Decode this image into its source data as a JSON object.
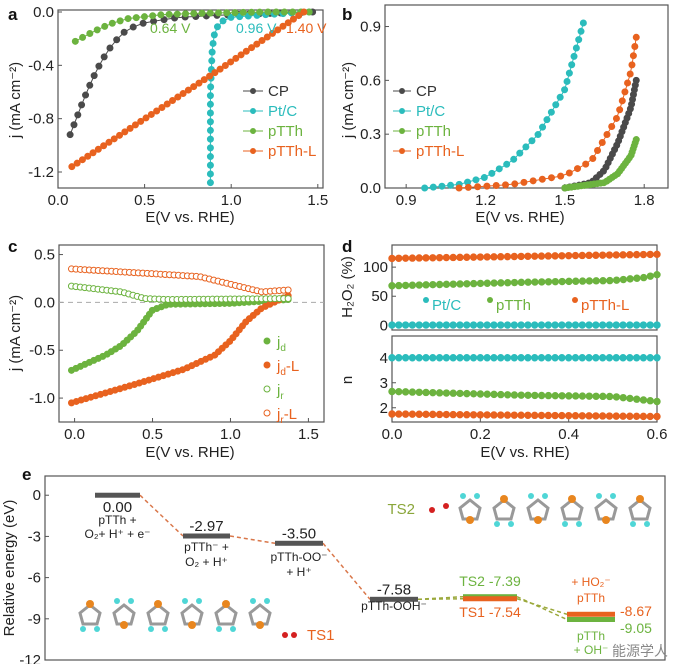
{
  "colors": {
    "CP": "#4a4a4a",
    "Pt/C": "#2bbcbc",
    "pTTh": "#6cb33f",
    "pTTh-L": "#e8621f",
    "gray": "#555555"
  },
  "watermark": "能源学人",
  "chart_data": [
    {
      "panel": "a",
      "type": "line",
      "xlabel": "E(V vs. RHE)",
      "ylabel": "j (mA cm⁻²)",
      "xlim": [
        0,
        1.53
      ],
      "ylim": [
        -1.32,
        0.015
      ],
      "xticks": [
        "0.0",
        "0.5",
        "1.0",
        "1.5"
      ],
      "yticks": [
        "0.0",
        "-0.4",
        "-0.8",
        "-1.2"
      ],
      "legend": "right",
      "annotations": [
        {
          "text": "0.64 V",
          "series": "pTTh"
        },
        {
          "text": "0.96 V",
          "series": "Pt/C"
        },
        {
          "text": "1.40 V",
          "series": "pTTh-L"
        }
      ],
      "series": [
        {
          "name": "CP",
          "x": [
            0.07,
            0.1,
            0.15,
            0.2,
            0.25,
            0.3,
            0.35,
            0.4,
            0.5,
            0.7,
            1.0,
            1.47
          ],
          "y": [
            -0.92,
            -0.82,
            -0.65,
            -0.5,
            -0.37,
            -0.27,
            -0.19,
            -0.13,
            -0.08,
            -0.04,
            -0.02,
            0
          ]
        },
        {
          "name": "Pt/C",
          "x": [
            0.88,
            0.88,
            0.89,
            0.9,
            0.93,
            1.0,
            1.2,
            1.45
          ],
          "y": [
            -1.28,
            -0.6,
            -0.3,
            -0.18,
            -0.08,
            -0.04,
            -0.02,
            0
          ]
        },
        {
          "name": "pTTh",
          "x": [
            0.1,
            0.2,
            0.3,
            0.4,
            0.6,
            0.8,
            1.2,
            1.45
          ],
          "y": [
            -0.22,
            -0.15,
            -0.09,
            -0.05,
            -0.02,
            -0.01,
            0,
            0
          ]
        },
        {
          "name": "pTTh-L",
          "x": [
            0.08,
            0.9,
            1.42
          ],
          "y": [
            -1.16,
            -0.46,
            0
          ]
        }
      ]
    },
    {
      "panel": "b",
      "type": "line",
      "xlabel": "E(V vs. RHE)",
      "ylabel": "j (mA cm⁻²)",
      "xlim": [
        0.82,
        1.89
      ],
      "ylim": [
        0,
        1.02
      ],
      "xticks": [
        "0.9",
        "1.2",
        "1.5",
        "1.8"
      ],
      "yticks": [
        "0.0",
        "0.3",
        "0.6",
        "0.9"
      ],
      "legend": "left",
      "series": [
        {
          "name": "CP",
          "x": [
            1.5,
            1.6,
            1.65,
            1.7,
            1.75,
            1.77
          ],
          "y": [
            0,
            0.03,
            0.1,
            0.25,
            0.45,
            0.6
          ]
        },
        {
          "name": "Pt/C",
          "x": [
            0.97,
            1.1,
            1.2,
            1.3,
            1.4,
            1.5,
            1.57
          ],
          "y": [
            0,
            0.02,
            0.06,
            0.15,
            0.3,
            0.55,
            0.92
          ]
        },
        {
          "name": "pTTh",
          "x": [
            1.5,
            1.65,
            1.7,
            1.75,
            1.77
          ],
          "y": [
            0,
            0.03,
            0.08,
            0.18,
            0.27
          ]
        },
        {
          "name": "pTTh-L",
          "x": [
            1.1,
            1.3,
            1.5,
            1.6,
            1.7,
            1.75,
            1.77
          ],
          "y": [
            0,
            0.02,
            0.07,
            0.15,
            0.4,
            0.65,
            0.84
          ]
        }
      ]
    },
    {
      "panel": "c",
      "type": "line",
      "xlabel": "E(V vs. RHE)",
      "ylabel": "j (mA cm⁻²)",
      "xlim": [
        -0.1,
        1.6
      ],
      "ylim": [
        -1.25,
        0.6
      ],
      "xticks": [
        "0.0",
        "0.5",
        "1.0",
        "1.5"
      ],
      "yticks": [
        "0.5",
        "0.0",
        "-0.5",
        "-1.0"
      ],
      "legend": "bottom-right",
      "series": [
        {
          "name": "jd",
          "label": "j",
          "sub": "d",
          "suffix": "",
          "color": "pTTh",
          "filled": true,
          "x": [
            -0.02,
            0.2,
            0.3,
            0.4,
            0.5,
            0.6,
            1.0,
            1.37
          ],
          "y": [
            -0.71,
            -0.55,
            -0.45,
            -0.3,
            -0.08,
            -0.02,
            -0.01,
            0.03
          ]
        },
        {
          "name": "jd-L",
          "label": "j",
          "sub": "d",
          "suffix": "-L",
          "color": "pTTh-L",
          "filled": true,
          "x": [
            -0.02,
            0.4,
            0.7,
            0.9,
            1.0,
            1.1,
            1.2,
            1.37
          ],
          "y": [
            -1.05,
            -0.85,
            -0.7,
            -0.55,
            -0.4,
            -0.2,
            -0.06,
            0.07
          ]
        },
        {
          "name": "jr",
          "label": "j",
          "sub": "r",
          "suffix": "",
          "color": "pTTh",
          "filled": false,
          "x": [
            -0.02,
            0.3,
            0.45,
            0.6,
            1.37
          ],
          "y": [
            0.17,
            0.11,
            0.04,
            0.03,
            0.04
          ]
        },
        {
          "name": "jr-L",
          "label": "j",
          "sub": "r",
          "suffix": "-L",
          "color": "pTTh-L",
          "filled": false,
          "x": [
            -0.02,
            0.5,
            0.8,
            1.0,
            1.2,
            1.37
          ],
          "y": [
            0.35,
            0.3,
            0.27,
            0.19,
            0.11,
            0.13
          ]
        }
      ]
    },
    {
      "panel": "d",
      "type": "scatter",
      "xlabel": "E(V vs. RHE)",
      "xlim": [
        0,
        0.6
      ],
      "xticks": [
        "0.0",
        "0.2",
        "0.4",
        "0.6"
      ],
      "top": {
        "ylabel": "H₂O₂ (%)",
        "ylim": [
          -8,
          138
        ],
        "yticks": [
          "0",
          "50",
          "100"
        ],
        "series": [
          {
            "name": "Pt/C",
            "x": [
              0,
              0.6
            ],
            "y": [
              0.5,
              0.5
            ]
          },
          {
            "name": "pTTh",
            "x": [
              0,
              0.3,
              0.5,
              0.57,
              0.6
            ],
            "y": [
              68,
              74,
              77,
              82,
              87
            ]
          },
          {
            "name": "pTTh-L",
            "x": [
              0,
              0.6
            ],
            "y": [
              115,
              122
            ]
          }
        ]
      },
      "bottom": {
        "ylabel": "n",
        "ylim": [
          1.43,
          4.87
        ],
        "yticks": [
          "2",
          "3",
          "4"
        ],
        "series": [
          {
            "name": "Pt/C",
            "x": [
              0,
              0.6
            ],
            "y": [
              4,
              4
            ]
          },
          {
            "name": "pTTh",
            "x": [
              0,
              0.3,
              0.5,
              0.6
            ],
            "y": [
              2.65,
              2.5,
              2.45,
              2.25
            ]
          },
          {
            "name": "pTTh-L",
            "x": [
              0,
              0.6
            ],
            "y": [
              1.75,
              1.65
            ]
          }
        ]
      },
      "legend": "inside-top"
    },
    {
      "panel": "e",
      "type": "energy-diagram",
      "ylabel": "Relative energy (eV)",
      "ylim": [
        -12,
        1.4
      ],
      "yticks": [
        "0",
        "-3",
        "-6",
        "-9",
        "-12"
      ],
      "levels": [
        {
          "value": 0.0,
          "label": "0.00",
          "state": "pTTh + O₂+ H⁺ + e⁻",
          "color": "gray"
        },
        {
          "value": -2.97,
          "label": "-2.97",
          "state": "pTTh⁻ + O₂ + H⁺",
          "color": "gray"
        },
        {
          "value": -3.5,
          "label": "-3.50",
          "state": "pTTh-OO⁻ + H⁺",
          "color": "gray"
        },
        {
          "value": -7.58,
          "label": "-7.58",
          "state": "pTTh-OOH⁻",
          "color": "gray"
        },
        {
          "value": -7.39,
          "label": "TS2 -7.39",
          "color": "pTTh"
        },
        {
          "value": -7.54,
          "label": "TS1 -7.54",
          "color": "pTTh-L"
        },
        {
          "value": -8.67,
          "label": "-8.67",
          "state": "+ HO₂⁻ pTTh",
          "color": "pTTh-L"
        },
        {
          "value": -9.05,
          "label": "-9.05",
          "state": "pTTh + OH⁻",
          "color": "pTTh"
        }
      ],
      "structures": [
        "TS1",
        "TS2"
      ]
    }
  ]
}
